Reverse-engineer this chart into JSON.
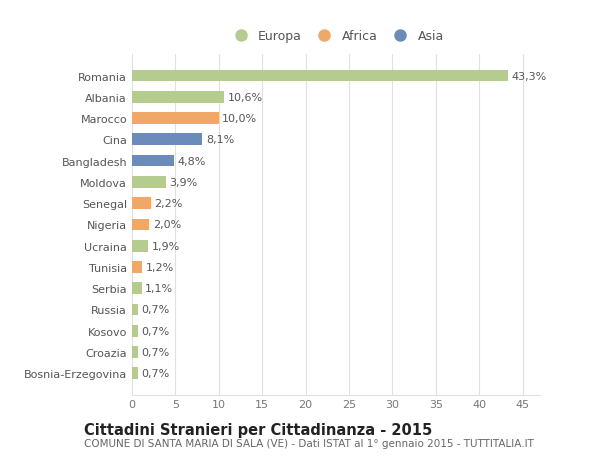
{
  "countries": [
    "Romania",
    "Albania",
    "Marocco",
    "Cina",
    "Bangladesh",
    "Moldova",
    "Senegal",
    "Nigeria",
    "Ucraina",
    "Tunisia",
    "Serbia",
    "Russia",
    "Kosovo",
    "Croazia",
    "Bosnia-Erzegovina"
  ],
  "values": [
    43.3,
    10.6,
    10.0,
    8.1,
    4.8,
    3.9,
    2.2,
    2.0,
    1.9,
    1.2,
    1.1,
    0.7,
    0.7,
    0.7,
    0.7
  ],
  "labels": [
    "43,3%",
    "10,6%",
    "10,0%",
    "8,1%",
    "4,8%",
    "3,9%",
    "2,2%",
    "2,0%",
    "1,9%",
    "1,2%",
    "1,1%",
    "0,7%",
    "0,7%",
    "0,7%",
    "0,7%"
  ],
  "continents": [
    "Europa",
    "Europa",
    "Africa",
    "Asia",
    "Asia",
    "Europa",
    "Africa",
    "Africa",
    "Europa",
    "Africa",
    "Europa",
    "Europa",
    "Europa",
    "Europa",
    "Europa"
  ],
  "colors": {
    "Europa": "#b5cc8e",
    "Africa": "#f0a868",
    "Asia": "#6b8cba"
  },
  "xlim": [
    0,
    47
  ],
  "xticks": [
    0,
    5,
    10,
    15,
    20,
    25,
    30,
    35,
    40,
    45
  ],
  "title_main": "Cittadini Stranieri per Cittadinanza - 2015",
  "title_sub": "COMUNE DI SANTA MARIA DI SALA (VE) - Dati ISTAT al 1° gennaio 2015 - TUTTITALIA.IT",
  "bg_color": "#ffffff",
  "grid_color": "#e0e0e0",
  "bar_height": 0.55,
  "label_fontsize": 8,
  "tick_fontsize": 8,
  "country_fontsize": 8,
  "title_fontsize": 10.5,
  "subtitle_fontsize": 7.5,
  "legend_fontsize": 9
}
